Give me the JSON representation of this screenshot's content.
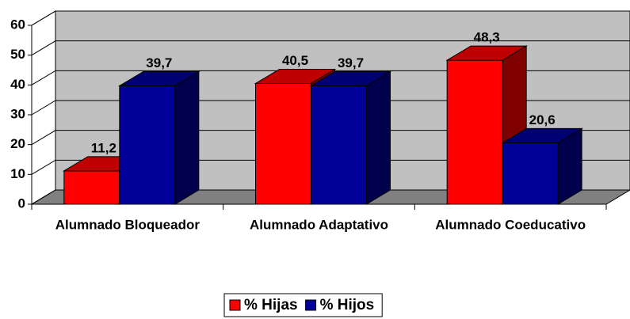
{
  "chart_data": {
    "type": "bar3d",
    "categories": [
      "Alumnado Bloqueador",
      "Alumnado Adaptativo",
      "Alumnado Coeducativo"
    ],
    "series": [
      {
        "name": "% Hijas",
        "color": "#ff0000",
        "values": [
          11.2,
          40.5,
          48.3
        ],
        "value_labels": [
          "11,2",
          "40,5",
          "48,3"
        ]
      },
      {
        "name": "% Hijos",
        "color": "#000099",
        "values": [
          39.7,
          39.7,
          20.6
        ],
        "value_labels": [
          "39,7",
          "39,7",
          "20,6"
        ]
      }
    ],
    "ylim": [
      0,
      60
    ],
    "yticks": [
      0,
      10,
      20,
      30,
      40,
      50,
      60
    ],
    "grid": true,
    "legend": "bottom"
  }
}
